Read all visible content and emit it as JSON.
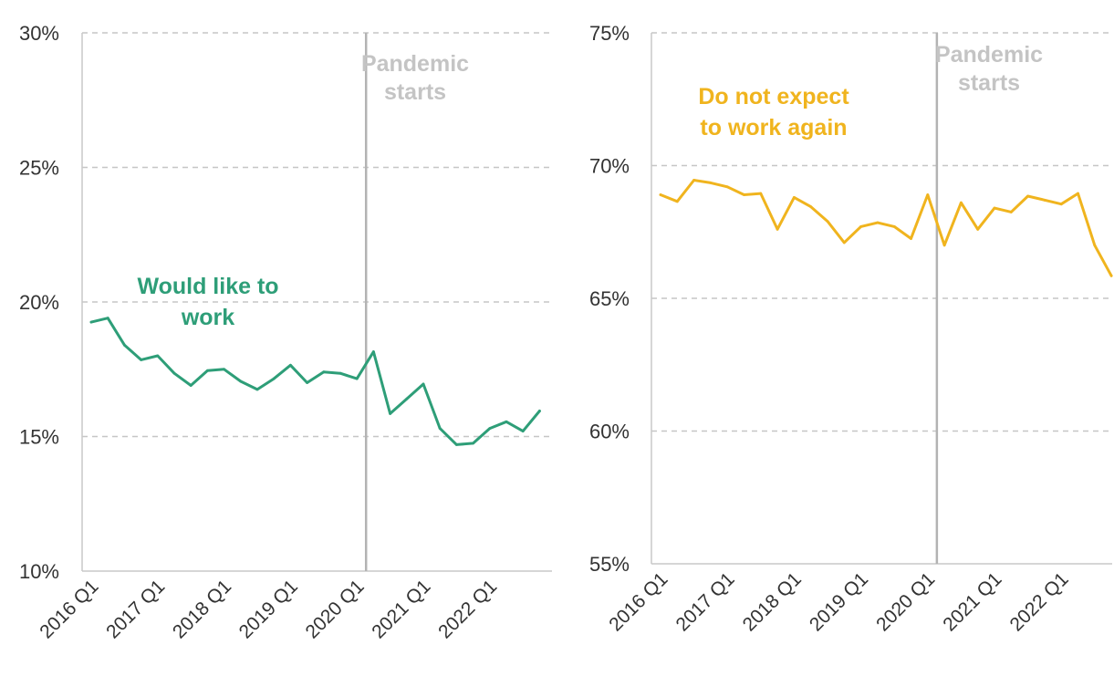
{
  "chart_data": [
    {
      "type": "line",
      "ylim": [
        10,
        30
      ],
      "y_ticks": [
        "10%",
        "15%",
        "20%",
        "25%",
        "30%"
      ],
      "x_tick_labels": [
        "2016 Q1",
        "2017 Q1",
        "2018 Q1",
        "2019 Q1",
        "2020 Q1",
        "2021 Q1",
        "2022 Q1"
      ],
      "grid": "horizontal dashed",
      "annotation": {
        "text_lines": [
          "Pandemic",
          "starts"
        ],
        "at_index": 17
      },
      "series": [
        {
          "label_lines": [
            "Would like to",
            "work"
          ],
          "color": "#2e9e78",
          "values": [
            19.25,
            19.4,
            18.4,
            17.85,
            18.0,
            17.35,
            16.9,
            17.45,
            17.5,
            17.05,
            16.75,
            17.15,
            17.65,
            17.0,
            17.4,
            17.35,
            17.15,
            18.15,
            15.85,
            16.4,
            16.95,
            15.3,
            14.7,
            14.75,
            15.3,
            15.55,
            15.2,
            15.95
          ]
        }
      ]
    },
    {
      "type": "line",
      "ylim": [
        55,
        75
      ],
      "y_ticks": [
        "55%",
        "60%",
        "65%",
        "70%",
        "75%"
      ],
      "x_tick_labels": [
        "2016 Q1",
        "2017 Q1",
        "2018 Q1",
        "2019 Q1",
        "2020 Q1",
        "2021 Q1",
        "2022 Q1"
      ],
      "grid": "horizontal dashed",
      "annotation": {
        "text_lines": [
          "Pandemic",
          "starts"
        ],
        "at_index": 17
      },
      "series": [
        {
          "label_lines": [
            "Do not expect",
            "to work again"
          ],
          "color": "#f0b41e",
          "values": [
            68.9,
            68.65,
            69.45,
            69.35,
            69.2,
            68.9,
            68.95,
            67.6,
            68.8,
            68.45,
            67.9,
            67.1,
            67.7,
            67.85,
            67.7,
            67.25,
            68.9,
            67.0,
            68.6,
            67.6,
            68.4,
            68.25,
            68.85,
            68.7,
            68.55,
            68.95,
            67.0,
            65.85
          ]
        }
      ]
    }
  ]
}
